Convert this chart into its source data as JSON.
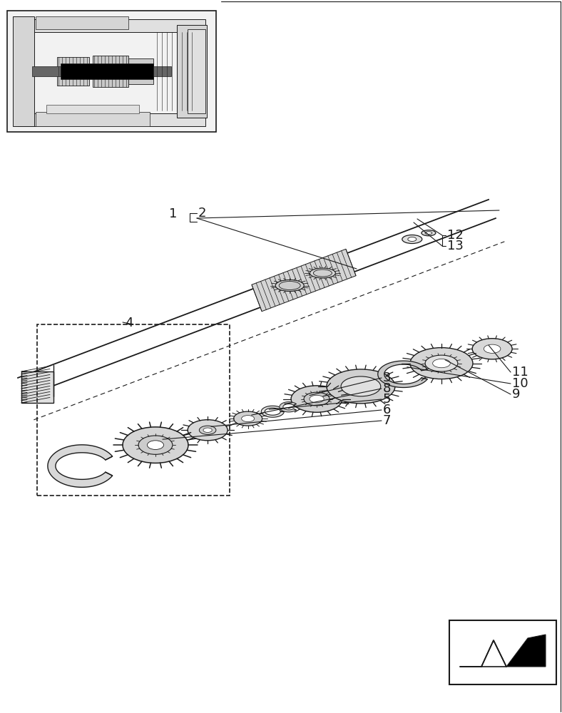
{
  "bg_color": "#ffffff",
  "line_color": "#1a1a1a",
  "fig_width": 7.88,
  "fig_height": 10.0,
  "dpi": 100
}
